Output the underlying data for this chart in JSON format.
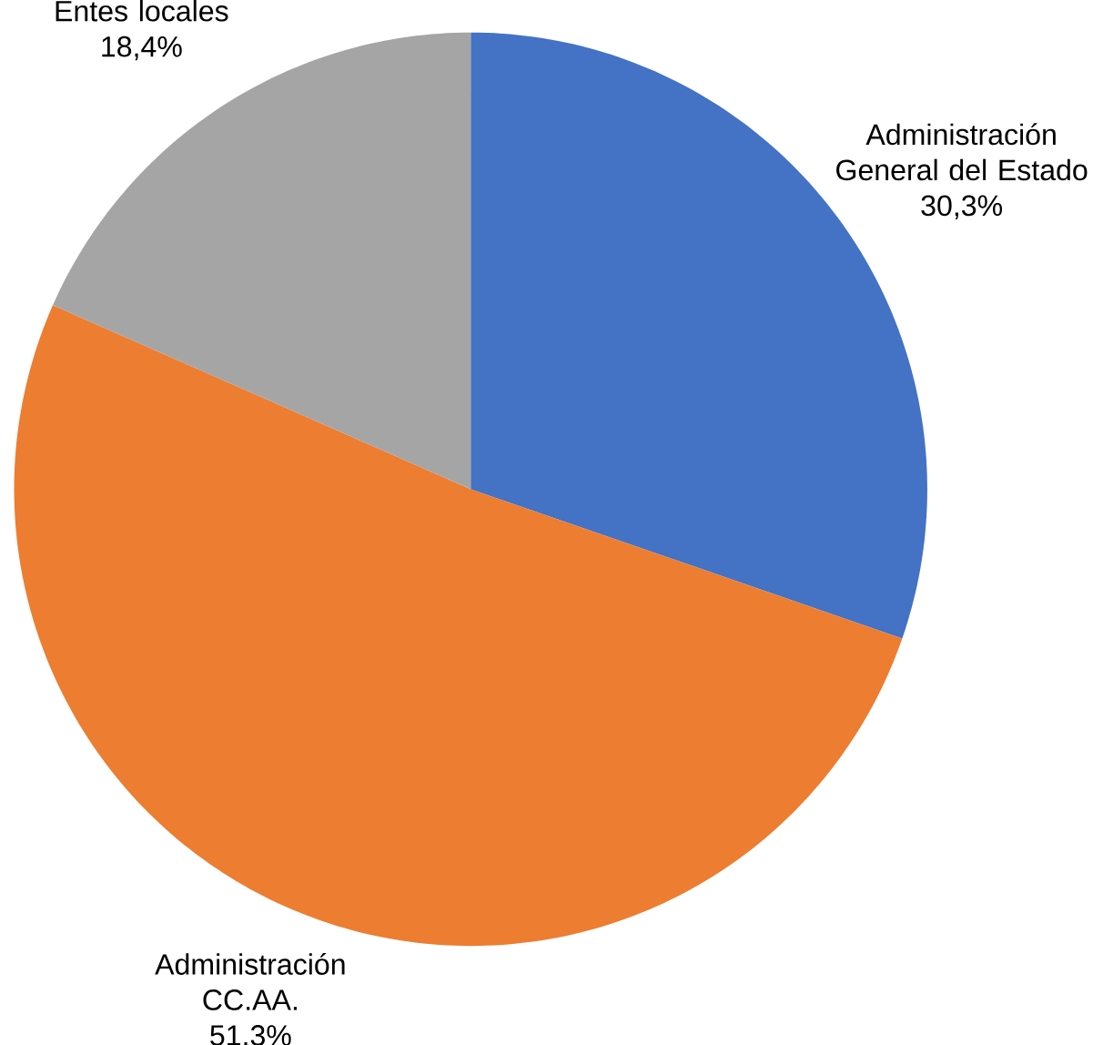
{
  "chart_data": {
    "type": "pie",
    "categories": [
      "Administración General del Estado",
      "Administración CC.AA.",
      "Entes locales"
    ],
    "values": [
      30.3,
      51.3,
      18.4
    ],
    "colors": [
      "#4472c4",
      "#ed7d31",
      "#a5a5a5"
    ],
    "value_labels": [
      "30,3%",
      "51.3%",
      "18,4%"
    ]
  }
}
